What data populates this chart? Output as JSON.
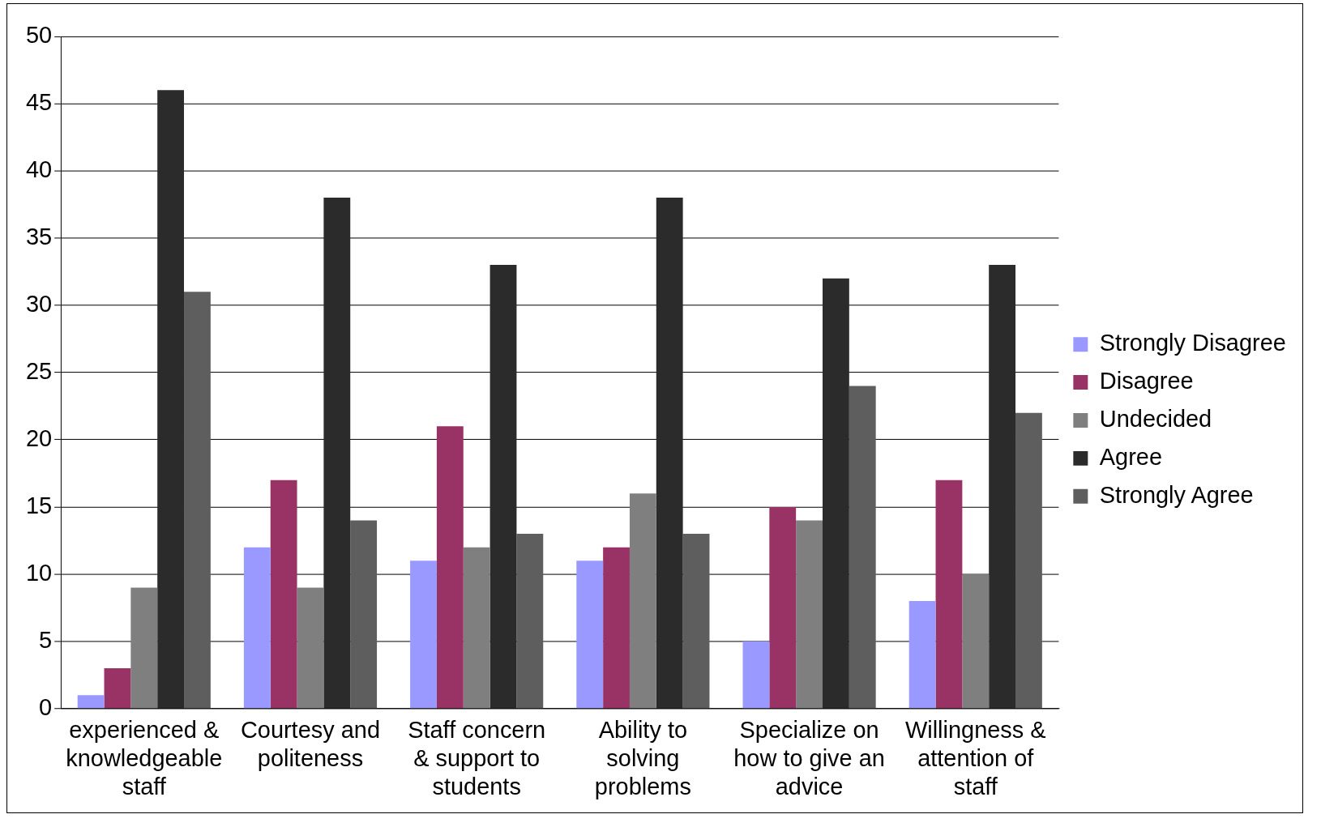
{
  "chart_data": {
    "type": "bar",
    "categories": [
      "experienced & knowledgeable staff",
      "Courtesy and politeness",
      "Staff concern & support to students",
      "Ability to solving problems",
      "Specialize on how to give an advice",
      "Willingness & attention of staff"
    ],
    "series": [
      {
        "name": "Strongly Disagree",
        "color": "#9999ff",
        "values": [
          1,
          12,
          11,
          11,
          5,
          8
        ]
      },
      {
        "name": "Disagree",
        "color": "#993366",
        "values": [
          3,
          17,
          21,
          12,
          15,
          17
        ]
      },
      {
        "name": "Undecided",
        "color": "#7f7f7f",
        "values": [
          9,
          9,
          12,
          16,
          14,
          10
        ]
      },
      {
        "name": "Agree",
        "color": "#2b2b2b",
        "values": [
          46,
          38,
          33,
          38,
          32,
          33
        ]
      },
      {
        "name": "Strongly Agree",
        "color": "#5e5e5e",
        "values": [
          31,
          14,
          13,
          13,
          24,
          22
        ]
      }
    ],
    "ylim": [
      0,
      50
    ],
    "yticks": [
      0,
      5,
      10,
      15,
      20,
      25,
      30,
      35,
      40,
      45,
      50
    ],
    "grid": "y",
    "legend": "right"
  }
}
